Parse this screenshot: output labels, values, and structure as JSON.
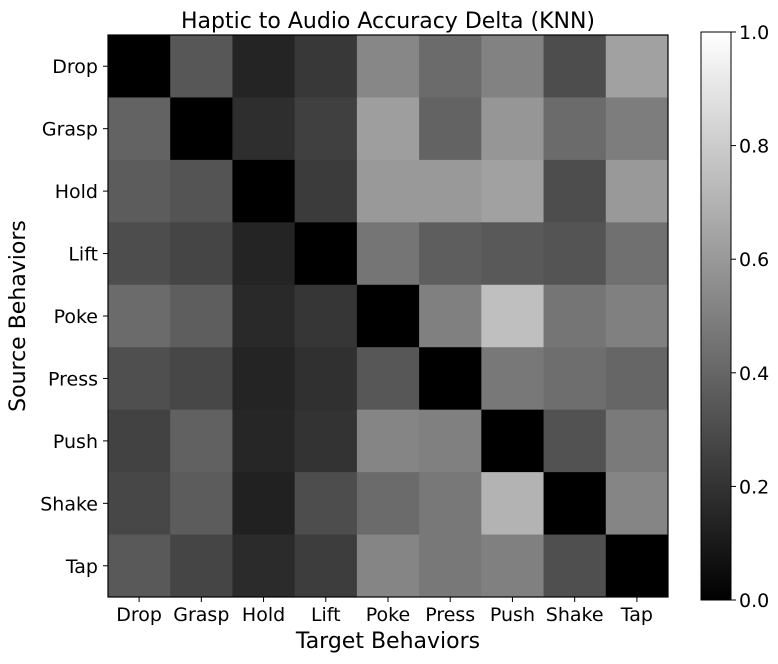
{
  "chart_data": {
    "type": "heatmap",
    "title": "Haptic to Audio Accuracy Delta (KNN)",
    "xlabel": "Target Behaviors",
    "ylabel": "Source Behaviors",
    "x_categories": [
      "Drop",
      "Grasp",
      "Hold",
      "Lift",
      "Poke",
      "Press",
      "Push",
      "Shake",
      "Tap"
    ],
    "y_categories": [
      "Drop",
      "Grasp",
      "Hold",
      "Lift",
      "Poke",
      "Press",
      "Push",
      "Shake",
      "Tap"
    ],
    "values": [
      [
        0.0,
        0.34,
        0.14,
        0.22,
        0.53,
        0.42,
        0.51,
        0.3,
        0.63
      ],
      [
        0.39,
        0.0,
        0.18,
        0.25,
        0.62,
        0.39,
        0.59,
        0.42,
        0.49
      ],
      [
        0.36,
        0.33,
        0.0,
        0.23,
        0.6,
        0.6,
        0.63,
        0.3,
        0.6
      ],
      [
        0.3,
        0.27,
        0.14,
        0.0,
        0.46,
        0.37,
        0.35,
        0.33,
        0.44
      ],
      [
        0.42,
        0.37,
        0.16,
        0.21,
        0.0,
        0.5,
        0.75,
        0.46,
        0.5
      ],
      [
        0.31,
        0.28,
        0.14,
        0.19,
        0.34,
        0.0,
        0.47,
        0.43,
        0.4
      ],
      [
        0.26,
        0.38,
        0.15,
        0.2,
        0.52,
        0.5,
        0.0,
        0.32,
        0.48
      ],
      [
        0.28,
        0.36,
        0.13,
        0.3,
        0.42,
        0.47,
        0.7,
        0.0,
        0.52
      ],
      [
        0.35,
        0.27,
        0.17,
        0.24,
        0.52,
        0.47,
        0.5,
        0.31,
        0.0
      ]
    ],
    "colormap": "gray",
    "colorbar": {
      "range": [
        0.0,
        1.0
      ],
      "ticks": [
        "0.0",
        "0.2",
        "0.4",
        "0.6",
        "0.8",
        "1.0"
      ],
      "tick_values": [
        0.0,
        0.2,
        0.4,
        0.6,
        0.8,
        1.0
      ]
    },
    "grid": false
  }
}
